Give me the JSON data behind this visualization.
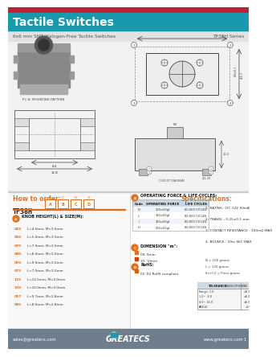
{
  "title": "Tactile Switches",
  "subtitle_left": "6x6 mm SMT Halogen-Free Tactile Switches",
  "subtitle_right": "TP38H Series",
  "header_bg": "#1899ae",
  "header_red": "#b82337",
  "subheader_bg": "#e2e2e2",
  "body_bg": "#ffffff",
  "footer_bg": "#6e7e8e",
  "orange": "#e07020",
  "how_to_order_label": "How to order:",
  "model": "TP38H",
  "knob_section_letter": "A",
  "knob_title": "KNOB HEIGHT(L) & SIZE(M):",
  "knob_data": [
    [
      "045",
      "L=4.5mm, M=3.5mm"
    ],
    [
      "050",
      "L=5.0mm, M=3.5mm"
    ],
    [
      "070",
      "L=7.0mm, M=3.0mm"
    ],
    [
      "080",
      "L=8.0mm, M=3.0mm"
    ],
    [
      "095",
      "L=9.5mm, M=3.0mm"
    ],
    [
      "075",
      "L=7.5mm, M=3.0mm"
    ],
    [
      "125",
      "L=12.5mm, M=3.0mm"
    ],
    [
      "100",
      "L=10.0mm, M=3.0mm"
    ],
    [
      "097",
      "L=9.7mm, M=2.8mm"
    ],
    [
      "085",
      "L=8.5mm, M=2.8mm"
    ]
  ],
  "op_section_letter": "B",
  "operating_title": "OPERATING FORCE & LIFE CYCLES:",
  "op_headers": [
    "Code",
    "OPERATING FORCE",
    "LIFE CYCLES"
  ],
  "op_data": [
    [
      "N",
      "100±50gf",
      "80,000 CYCLES"
    ],
    [
      "L",
      "130±50gf",
      "80,000 CYCLES"
    ],
    [
      "I",
      "160±50gf",
      "80,000 CYCLES"
    ],
    [
      "H",
      "260±50gf",
      "80,000 CYCLES"
    ]
  ],
  "dim_section_letter": "C",
  "dim_title": "DIMENSION \"m\":",
  "dim_data": [
    "09: 9mm",
    "10: 10mm"
  ],
  "rohs_section_letter": "D",
  "rohs_title": "RoHS:",
  "rohs_data": "01: EU RoHS compliant",
  "spec_title": "Specifications:",
  "spec_data": [
    "1. RATING : DC 12V 50mA",
    "2. TRAVEL : 0.25±0.1 mm",
    "3. CONTACT RESISTANCE : 100mΩ MAX",
    "4. BOUNCE : 10m SEC MAX"
  ],
  "notes": [
    "N = 100 grams",
    "L = 130 grams",
    "En+C2 = Press grams"
  ],
  "tol_header1": "TOLERANCE",
  "tol_header2": "UNLESS OTHERWISE",
  "tol_rows": [
    [
      "Range: 1.0",
      "±0.1"
    ],
    [
      "1.0~  4.0",
      "±0.2"
    ],
    [
      "4.0~ 14.0",
      "±0.3"
    ],
    [
      "ANGLE",
      "±1°"
    ]
  ],
  "footer_email": "sales@greatecs.com",
  "footer_logo": "GREATECS",
  "footer_web": "www.greatecs.com",
  "footer_page": "1"
}
